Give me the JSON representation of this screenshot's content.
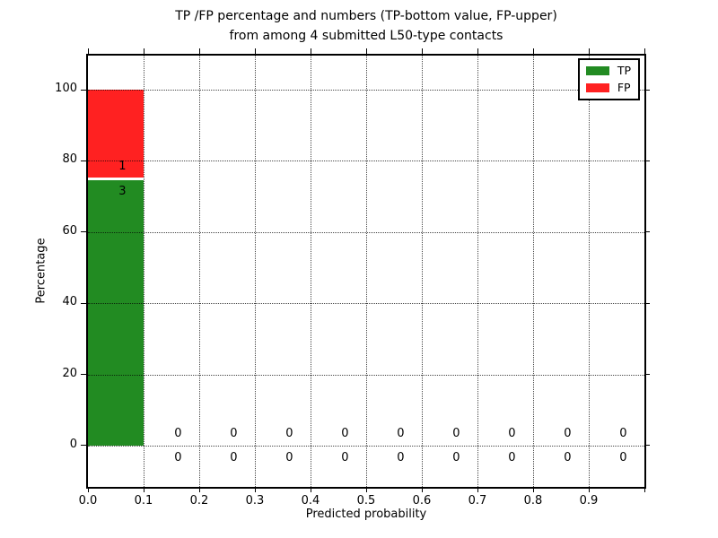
{
  "title": {
    "line1": "TP /FP percentage and numbers (TP-bottom value, FP-upper)",
    "line2": "from among 4 submitted L50-type contacts"
  },
  "chart_data": {
    "type": "bar",
    "stacked": true,
    "title": "TP /FP percentage and numbers (TP-bottom value, FP-upper) from among 4 submitted L50-type contacts",
    "xlabel": "Predicted probability",
    "ylabel": "Percentage",
    "xlim": [
      0.0,
      1.0
    ],
    "ylim": [
      -11.6,
      109.6
    ],
    "grid": true,
    "bin_edges": [
      0.0,
      0.1,
      0.2,
      0.3,
      0.4,
      0.5,
      0.6,
      0.7,
      0.8,
      0.9,
      1.0
    ],
    "xticks": [
      {
        "v": 0.0,
        "label": "0.0"
      },
      {
        "v": 0.1,
        "label": "0.1"
      },
      {
        "v": 0.2,
        "label": "0.2"
      },
      {
        "v": 0.3,
        "label": "0.3"
      },
      {
        "v": 0.4,
        "label": "0.4"
      },
      {
        "v": 0.5,
        "label": "0.5"
      },
      {
        "v": 0.6,
        "label": "0.6"
      },
      {
        "v": 0.7,
        "label": "0.7"
      },
      {
        "v": 0.8,
        "label": "0.8"
      },
      {
        "v": 0.9,
        "label": "0.9"
      },
      {
        "v": 1.0,
        "label": ""
      }
    ],
    "yticks": [
      {
        "v": 0,
        "label": "0"
      },
      {
        "v": 20,
        "label": "20"
      },
      {
        "v": 40,
        "label": "40"
      },
      {
        "v": 60,
        "label": "60"
      },
      {
        "v": 80,
        "label": "80"
      },
      {
        "v": 100,
        "label": "100"
      }
    ],
    "series": [
      {
        "name": "TP",
        "color": "#228b22",
        "pct": [
          75,
          0,
          0,
          0,
          0,
          0,
          0,
          0,
          0,
          0
        ],
        "counts": [
          3,
          0,
          0,
          0,
          0,
          0,
          0,
          0,
          0,
          0
        ]
      },
      {
        "name": "FP",
        "color": "#ff2121",
        "pct": [
          25,
          0,
          0,
          0,
          0,
          0,
          0,
          0,
          0,
          0
        ],
        "counts": [
          1,
          0,
          0,
          0,
          0,
          0,
          0,
          0,
          0,
          0
        ]
      }
    ],
    "legend": {
      "position": "upper right",
      "items": [
        {
          "label": "TP",
          "color": "#228b22"
        },
        {
          "label": "FP",
          "color": "#ff2121"
        }
      ]
    }
  }
}
